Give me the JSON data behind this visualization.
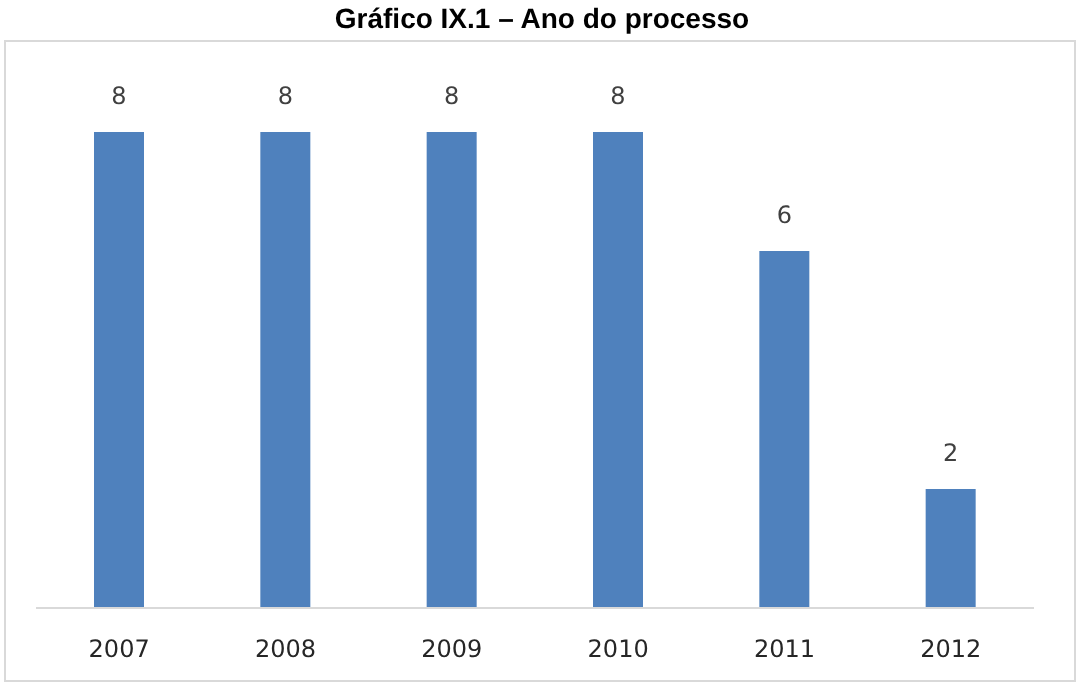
{
  "chart_data": {
    "type": "bar",
    "title": "Gráfico IX.1 – Ano do processo",
    "categories": [
      "2007",
      "2008",
      "2009",
      "2010",
      "2011",
      "2012"
    ],
    "values": [
      8,
      8,
      8,
      8,
      6,
      2
    ],
    "color": "#4f81bd",
    "data_labels": true
  }
}
